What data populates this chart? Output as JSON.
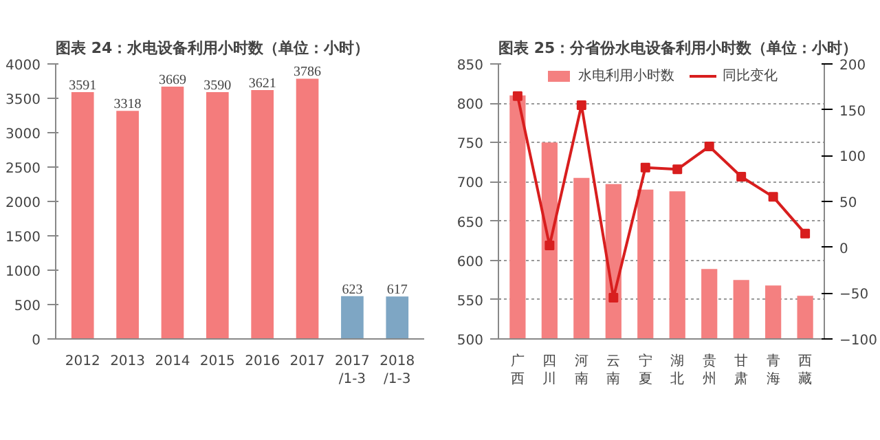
{
  "chart_data": [
    {
      "type": "bar",
      "title": "图表 24：水电设备利用小时数（单位：小时）",
      "categories": [
        "2012",
        "2013",
        "2014",
        "2015",
        "2016",
        "2017",
        "2017\n/1-3",
        "2018\n/1-3"
      ],
      "values": [
        3591,
        3318,
        3669,
        3590,
        3621,
        3786,
        623,
        617
      ],
      "colors": [
        "#f47c7c",
        "#f47c7c",
        "#f47c7c",
        "#f47c7c",
        "#f47c7c",
        "#f47c7c",
        "#7ea6c4",
        "#7ea6c4"
      ],
      "ylim": [
        0,
        4000
      ],
      "yticks": [
        0,
        500,
        1000,
        1500,
        2000,
        2500,
        3000,
        3500,
        4000
      ],
      "data_labels": true,
      "grid": false
    },
    {
      "type": "bar",
      "title": "图表 25：分省份水电设备利用小时数（单位：小时）",
      "categories": [
        "广西",
        "四川",
        "河南",
        "云南",
        "宁夏",
        "湖北",
        "贵州",
        "甘肃",
        "青海",
        "西藏"
      ],
      "series": [
        {
          "name": "水电利用小时数",
          "type": "bar",
          "color": "#f48080",
          "values": [
            810,
            750,
            705,
            697,
            690,
            688,
            589,
            575,
            568,
            555
          ]
        },
        {
          "name": "同比变化",
          "type": "line",
          "axis": "y2",
          "color": "#d81e1e",
          "values": [
            165,
            2,
            155,
            -55,
            87,
            85,
            110,
            77,
            55,
            15
          ]
        }
      ],
      "ylim": [
        500,
        850
      ],
      "yticks": [
        500,
        550,
        600,
        650,
        700,
        750,
        800,
        850
      ],
      "y2lim": [
        -100,
        200
      ],
      "y2ticks": [
        -100,
        -50,
        0,
        50,
        100,
        150,
        200
      ],
      "grid": "y",
      "legend": "top",
      "marker": "square",
      "line_style": "solid"
    }
  ]
}
